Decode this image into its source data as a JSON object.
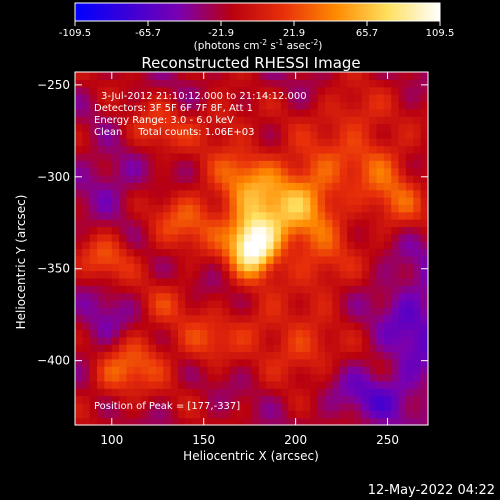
{
  "chart_data": {
    "type": "heatmap",
    "title": "Reconstructed RHESSI Image",
    "xlabel": "Heliocentric X (arcsec)",
    "ylabel": "Heliocentric Y (arcsec)",
    "xlim": [
      80,
      272
    ],
    "ylim": [
      -435,
      -243
    ],
    "x_ticks": [
      100,
      150,
      200,
      250
    ],
    "y_ticks": [
      -250,
      -300,
      -350,
      -400
    ],
    "colorbar": {
      "ticks": [
        "-109.5",
        "-65.7",
        "-21.9",
        "21.9",
        "65.7",
        "109.5"
      ],
      "range": [
        -109.5,
        109.5
      ],
      "unit_label_parts": [
        "(photons cm",
        "-2",
        " s",
        "-1",
        " asec",
        "-2",
        ")"
      ],
      "colors": [
        "#0000ff",
        "#3a00d8",
        "#7a00b0",
        "#b80010",
        "#e8300a",
        "#ff8a00",
        "#ffe060",
        "#ffffff"
      ]
    },
    "annotations": [
      "3-Jul-2012 21:10:12.000 to 21:14:12.000",
      "Detectors: 3F 5F 6F 7F 8F, Att 1",
      "Energy Range: 3.0 - 6.0 keV",
      "Clean     Total counts: 1.06E+03"
    ],
    "peak_label": "Position of Peak = [177,-337]",
    "peak": {
      "x": 177,
      "y": -337,
      "value": 109.5
    },
    "background_level": -20,
    "blobs": [
      {
        "x": 177,
        "y": -337,
        "amp": 125,
        "sx": 9,
        "sy": 11
      },
      {
        "x": 190,
        "y": -320,
        "amp": 55,
        "sx": 18,
        "sy": 15
      },
      {
        "x": 172,
        "y": -300,
        "amp": 45,
        "sx": 14,
        "sy": 13
      },
      {
        "x": 210,
        "y": -305,
        "amp": 45,
        "sx": 14,
        "sy": 18
      },
      {
        "x": 245,
        "y": -290,
        "amp": 38,
        "sx": 13,
        "sy": 13
      },
      {
        "x": 255,
        "y": -315,
        "amp": 40,
        "sx": 12,
        "sy": 12
      },
      {
        "x": 140,
        "y": -325,
        "amp": 40,
        "sx": 14,
        "sy": 12
      },
      {
        "x": 125,
        "y": -275,
        "amp": 35,
        "sx": 12,
        "sy": 10
      },
      {
        "x": 97,
        "y": -345,
        "amp": 40,
        "sx": 10,
        "sy": 9
      },
      {
        "x": 215,
        "y": -350,
        "amp": 35,
        "sx": 12,
        "sy": 12
      },
      {
        "x": 205,
        "y": -395,
        "amp": 40,
        "sx": 12,
        "sy": 10
      },
      {
        "x": 180,
        "y": -380,
        "amp": 30,
        "sx": 14,
        "sy": 10
      },
      {
        "x": 230,
        "y": -265,
        "amp": 30,
        "sx": 12,
        "sy": 10
      },
      {
        "x": 150,
        "y": -390,
        "amp": 35,
        "sx": 10,
        "sy": 9
      },
      {
        "x": 115,
        "y": -400,
        "amp": 40,
        "sx": 12,
        "sy": 11
      },
      {
        "x": 100,
        "y": -410,
        "amp": 30,
        "sx": 9,
        "sy": 9
      },
      {
        "x": 130,
        "y": -370,
        "amp": 25,
        "sx": 10,
        "sy": 9
      },
      {
        "x": 160,
        "y": -270,
        "amp": 28,
        "sx": 10,
        "sy": 8
      },
      {
        "x": 265,
        "y": -380,
        "amp": -35,
        "sx": 14,
        "sy": 30
      },
      {
        "x": 240,
        "y": -420,
        "amp": -30,
        "sx": 16,
        "sy": 10
      },
      {
        "x": 100,
        "y": -300,
        "amp": -25,
        "sx": 14,
        "sy": 12
      },
      {
        "x": 95,
        "y": -380,
        "amp": -25,
        "sx": 10,
        "sy": 12
      }
    ]
  },
  "footer": {
    "timestamp": "12-May-2022 04:22"
  }
}
